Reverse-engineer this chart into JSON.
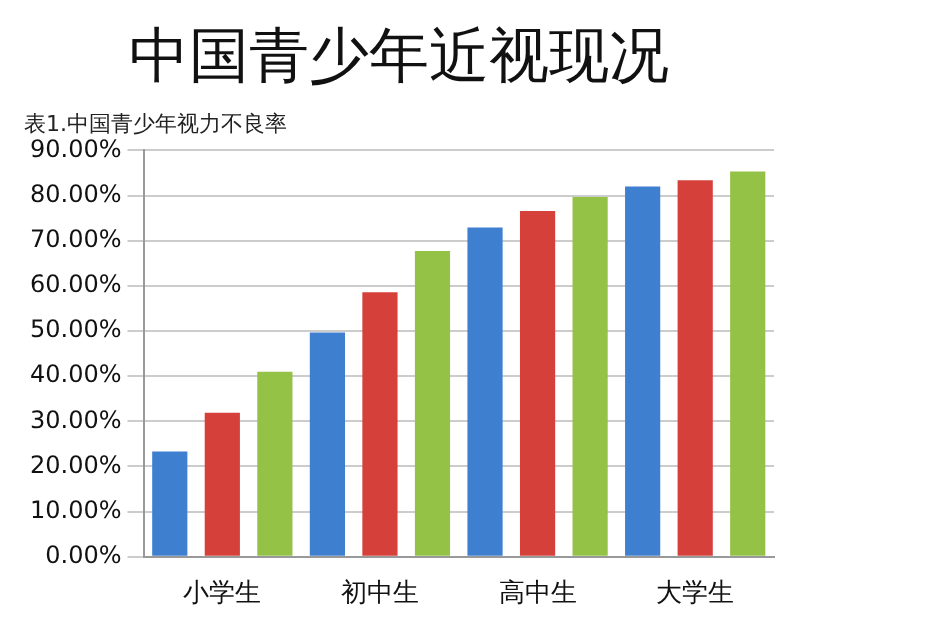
{
  "chart_data": {
    "type": "bar",
    "title": "中国青少年近视现况",
    "subtitle": "表1.中国青少年视力不良率",
    "categories": [
      "小学生",
      "初中生",
      "高中生",
      "大学生"
    ],
    "series": [
      {
        "color": "#3f7fd0",
        "values": [
          23.3,
          49.7,
          72.9,
          82.0
        ]
      },
      {
        "color": "#d6403a",
        "values": [
          31.9,
          58.6,
          76.6,
          83.4
        ]
      },
      {
        "color": "#94c247",
        "values": [
          41.0,
          67.7,
          79.7,
          85.3
        ]
      }
    ],
    "ylim": [
      0,
      90
    ],
    "yticks": [
      {
        "value": 0,
        "label": "0.00%"
      },
      {
        "value": 10,
        "label": "10.00%"
      },
      {
        "value": 20,
        "label": "20.00%"
      },
      {
        "value": 30,
        "label": "30.00%"
      },
      {
        "value": 40,
        "label": "40.00%"
      },
      {
        "value": 50,
        "label": "50.00%"
      },
      {
        "value": 60,
        "label": "60.00%"
      },
      {
        "value": 70,
        "label": "70.00%"
      },
      {
        "value": 80,
        "label": "80.00%"
      },
      {
        "value": 90,
        "label": "90.00%"
      }
    ],
    "grid": "y",
    "legend": false
  }
}
